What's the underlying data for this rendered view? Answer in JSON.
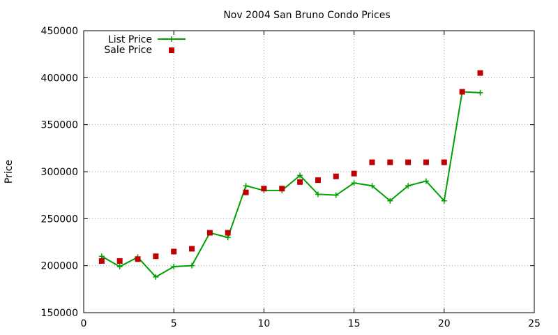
{
  "chart_data": {
    "type": "line",
    "title": "Nov 2004 San Bruno Condo Prices",
    "xlabel": "",
    "ylabel": "Price",
    "xlim": [
      0,
      25
    ],
    "ylim": [
      150000,
      450000
    ],
    "xticks": [
      0,
      5,
      10,
      15,
      20,
      25
    ],
    "yticks": [
      150000,
      200000,
      250000,
      300000,
      350000,
      400000,
      450000
    ],
    "grid": true,
    "legend_position": "top-left",
    "series": [
      {
        "name": "List Price",
        "style": "linespoints",
        "marker": "plus",
        "color": "#00a000",
        "x": [
          1,
          2,
          3,
          4,
          5,
          6,
          7,
          8,
          9,
          10,
          11,
          12,
          13,
          14,
          15,
          16,
          17,
          18,
          19,
          20,
          21,
          22
        ],
        "y": [
          210000,
          199000,
          209000,
          188000,
          199000,
          200000,
          235000,
          230000,
          285000,
          280000,
          280000,
          296000,
          276000,
          275000,
          288000,
          285000,
          269000,
          285000,
          290000,
          269000,
          385000,
          384000
        ]
      },
      {
        "name": "Sale Price",
        "style": "points",
        "marker": "square",
        "color": "#c00000",
        "x": [
          1,
          2,
          3,
          4,
          5,
          6,
          7,
          8,
          9,
          10,
          11,
          12,
          13,
          14,
          15,
          16,
          17,
          18,
          19,
          20,
          21,
          22
        ],
        "y": [
          205000,
          205000,
          207000,
          210000,
          215000,
          218000,
          235000,
          235000,
          278000,
          282000,
          282000,
          289000,
          291000,
          295000,
          298000,
          310000,
          310000,
          310000,
          310000,
          310000,
          385000,
          405000
        ]
      }
    ]
  }
}
